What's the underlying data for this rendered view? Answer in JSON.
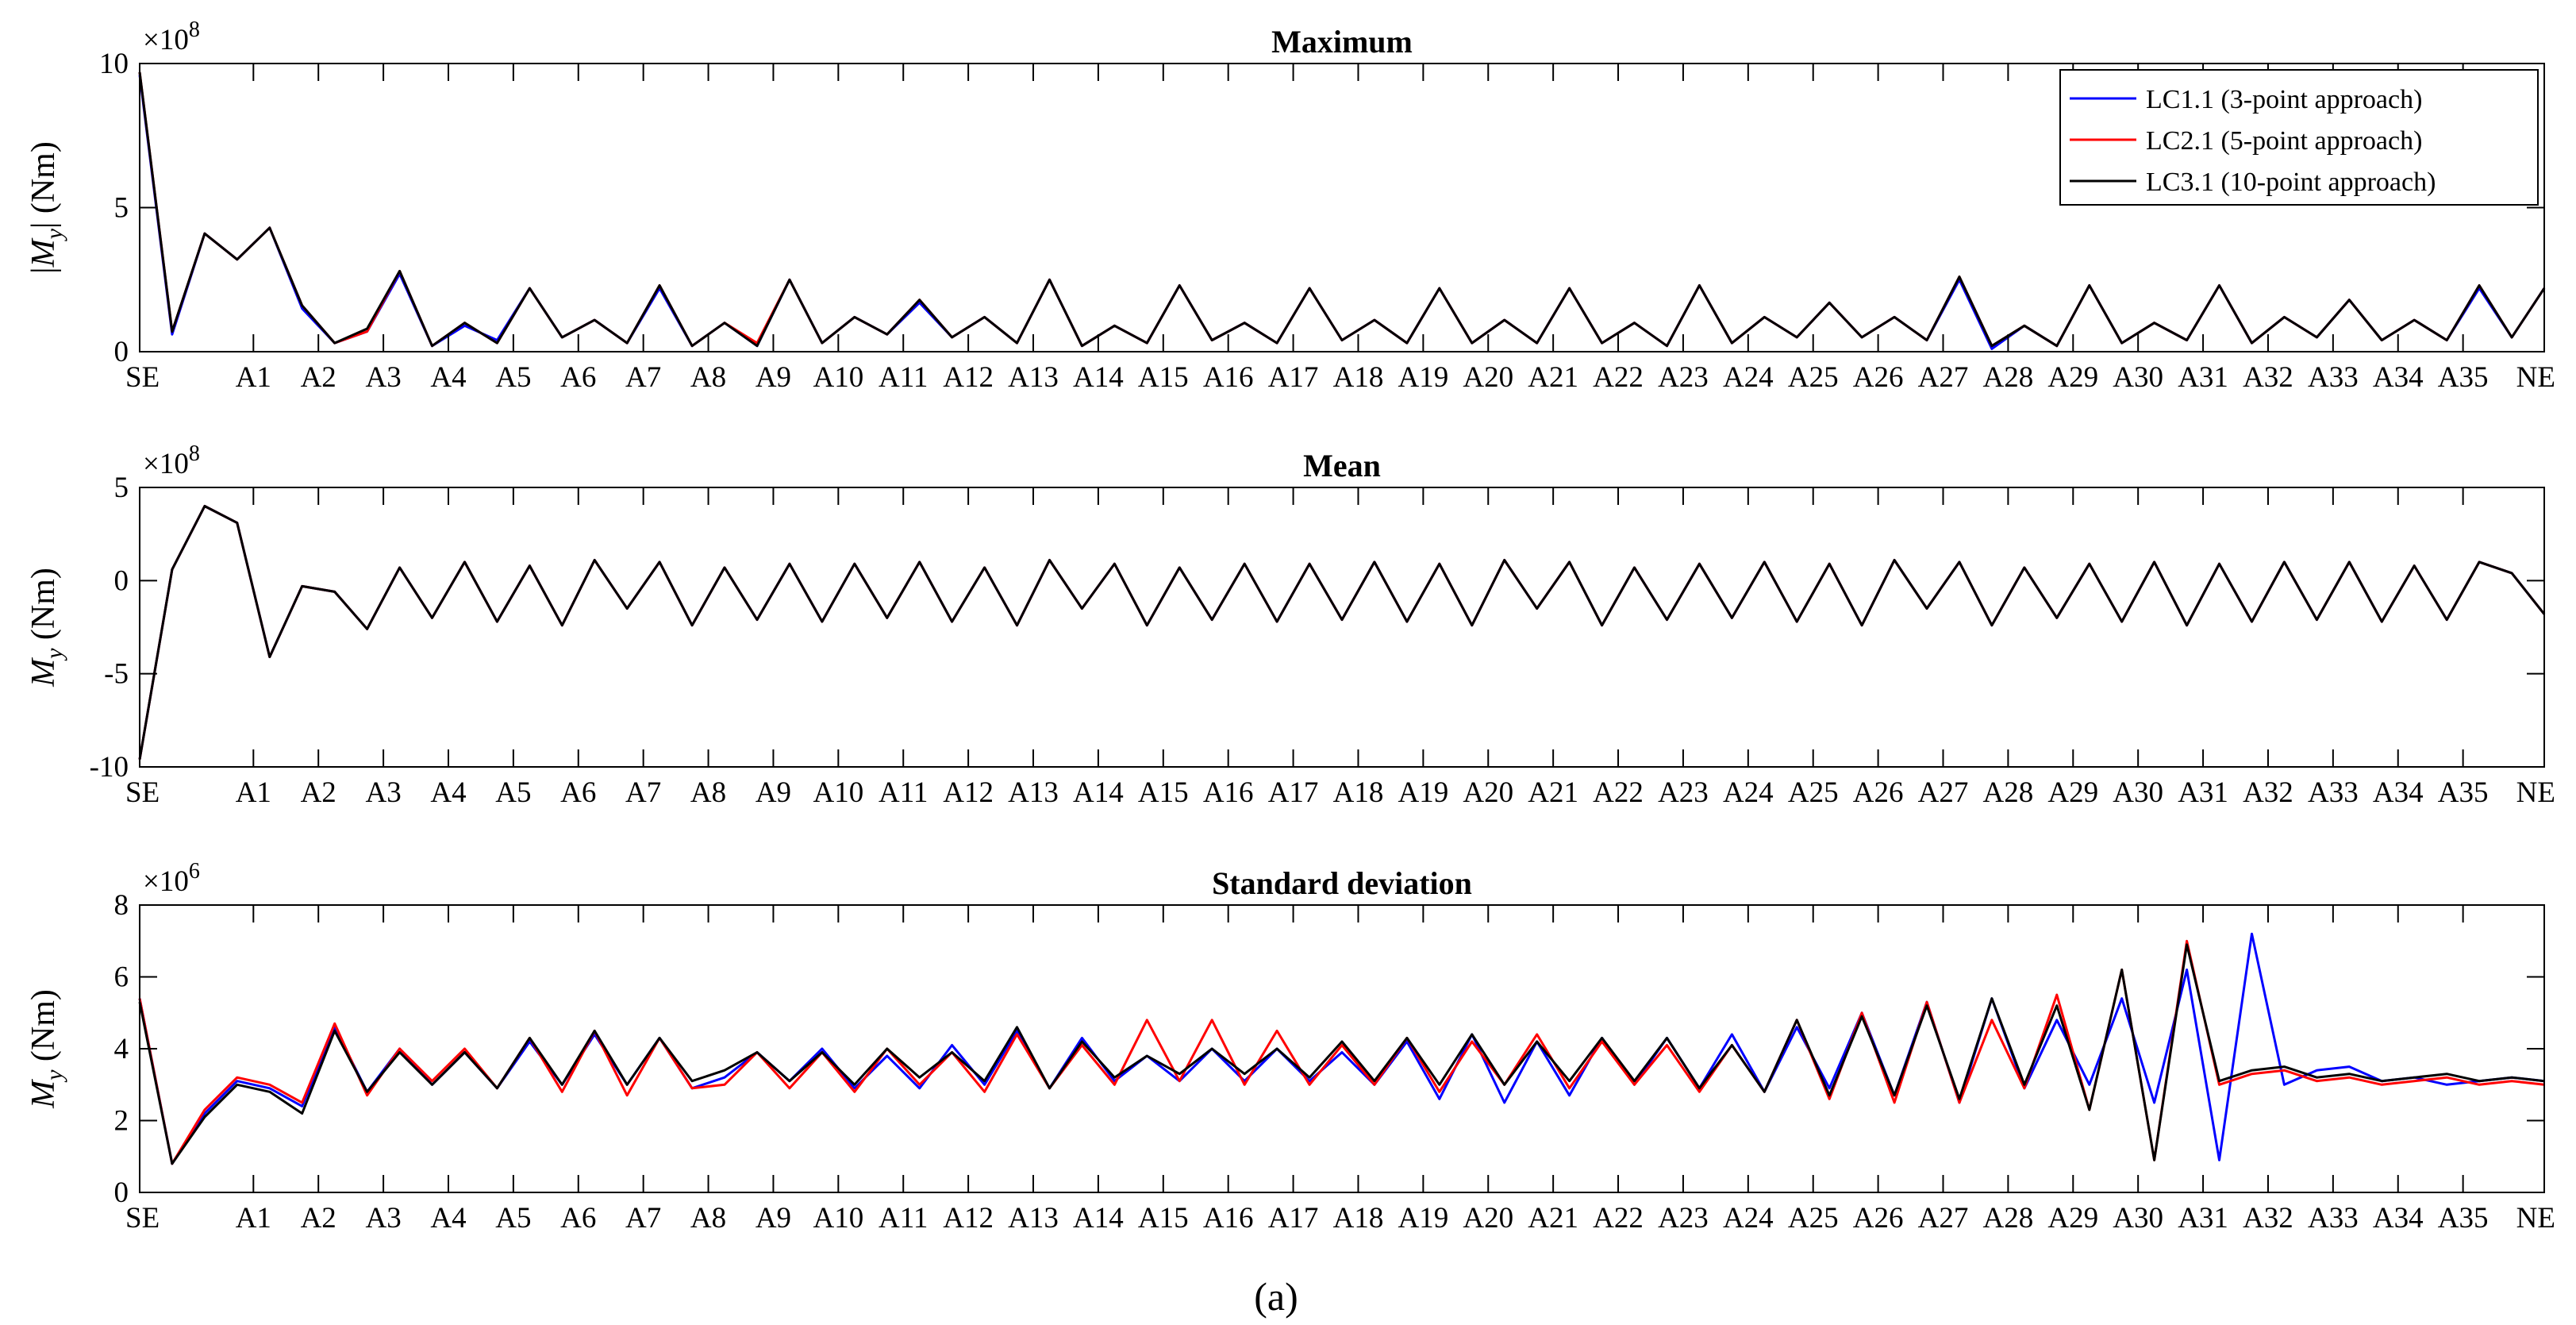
{
  "figure": {
    "caption": "(a)",
    "colors": {
      "LC1.1": "#0000ff",
      "LC2.1": "#ff0000",
      "LC3.1": "#000000"
    }
  },
  "chart_data": [
    {
      "type": "line",
      "title": "Maximum",
      "ylabel": "|M_y| (Nm)",
      "ylabel_parts": {
        "pre": "|",
        "var": "M",
        "sub": "y",
        "post": "| (Nm)"
      },
      "exponent": {
        "base": "×10",
        "power": "8"
      },
      "ylim": [
        0,
        10
      ],
      "yticks": [
        0,
        5,
        10
      ],
      "grid": false,
      "legend": "top-right",
      "x": [
        0,
        1,
        2,
        3,
        4,
        5,
        6,
        7,
        8,
        9,
        10,
        11,
        12,
        13,
        14,
        15,
        16,
        17,
        18,
        19,
        20,
        21,
        22,
        23,
        24,
        25,
        26,
        27,
        28,
        29,
        30,
        31,
        32,
        33,
        34,
        35,
        36,
        37,
        38,
        39,
        40,
        41,
        42,
        43,
        44,
        45,
        46,
        47,
        48,
        49,
        50,
        51,
        52,
        53,
        54,
        55,
        56,
        57,
        58,
        59,
        60,
        61,
        62,
        63,
        64,
        65,
        66,
        67,
        68,
        69,
        70,
        71,
        72,
        73,
        74
      ],
      "series": [
        {
          "name": "LC1.1 (3-point approach)",
          "values": [
            9.6,
            0.6,
            4.1,
            3.2,
            4.3,
            1.5,
            0.3,
            0.7,
            2.7,
            0.2,
            0.9,
            0.4,
            2.2,
            0.5,
            1.1,
            0.3,
            2.2,
            0.2,
            1.0,
            0.2,
            2.5,
            0.3,
            1.2,
            0.6,
            1.7,
            0.5,
            1.2,
            0.3,
            2.5,
            0.2,
            0.9,
            0.3,
            2.3,
            0.4,
            1.0,
            0.3,
            2.2,
            0.4,
            1.1,
            0.3,
            2.2,
            0.3,
            1.1,
            0.3,
            2.2,
            0.3,
            1.0,
            0.2,
            2.3,
            0.3,
            1.2,
            0.5,
            1.7,
            0.5,
            1.2,
            0.4,
            2.5,
            0.1,
            0.9,
            0.2,
            2.3,
            0.3,
            1.0,
            0.4,
            2.3,
            0.3,
            1.2,
            0.5,
            1.8,
            0.4,
            1.1,
            0.4,
            2.2,
            0.5,
            2.2
          ]
        },
        {
          "name": "LC2.1 (5-point approach)",
          "values": [
            9.7,
            0.7,
            4.1,
            3.2,
            4.3,
            1.6,
            0.3,
            0.7,
            2.8,
            0.2,
            1.0,
            0.3,
            2.2,
            0.5,
            1.1,
            0.3,
            2.3,
            0.2,
            1.0,
            0.3,
            2.5,
            0.3,
            1.2,
            0.6,
            1.8,
            0.5,
            1.2,
            0.3,
            2.5,
            0.2,
            0.9,
            0.3,
            2.3,
            0.4,
            1.0,
            0.3,
            2.2,
            0.4,
            1.1,
            0.3,
            2.2,
            0.3,
            1.1,
            0.3,
            2.2,
            0.3,
            1.0,
            0.2,
            2.3,
            0.3,
            1.2,
            0.5,
            1.7,
            0.5,
            1.2,
            0.4,
            2.6,
            0.2,
            0.9,
            0.2,
            2.3,
            0.3,
            1.0,
            0.4,
            2.3,
            0.3,
            1.2,
            0.5,
            1.8,
            0.4,
            1.1,
            0.4,
            2.3,
            0.5,
            2.2
          ]
        },
        {
          "name": "LC3.1 (10-point approach)",
          "values": [
            9.7,
            0.7,
            4.1,
            3.2,
            4.3,
            1.6,
            0.3,
            0.8,
            2.8,
            0.2,
            1.0,
            0.3,
            2.2,
            0.5,
            1.1,
            0.3,
            2.3,
            0.2,
            1.0,
            0.2,
            2.5,
            0.3,
            1.2,
            0.6,
            1.8,
            0.5,
            1.2,
            0.3,
            2.5,
            0.2,
            0.9,
            0.3,
            2.3,
            0.4,
            1.0,
            0.3,
            2.2,
            0.4,
            1.1,
            0.3,
            2.2,
            0.3,
            1.1,
            0.3,
            2.2,
            0.3,
            1.0,
            0.2,
            2.3,
            0.3,
            1.2,
            0.5,
            1.7,
            0.5,
            1.2,
            0.4,
            2.6,
            0.2,
            0.9,
            0.2,
            2.3,
            0.3,
            1.0,
            0.4,
            2.3,
            0.3,
            1.2,
            0.5,
            1.8,
            0.4,
            1.1,
            0.4,
            2.3,
            0.5,
            2.2
          ]
        }
      ]
    },
    {
      "type": "line",
      "title": "Mean",
      "ylabel": "M_y (Nm)",
      "ylabel_parts": {
        "pre": "",
        "var": "M",
        "sub": "y",
        "post": " (Nm)"
      },
      "exponent": {
        "base": "×10",
        "power": "8"
      },
      "ylim": [
        -10,
        5
      ],
      "yticks": [
        -10,
        -5,
        0,
        5
      ],
      "grid": false,
      "x": [
        0,
        1,
        2,
        3,
        4,
        5,
        6,
        7,
        8,
        9,
        10,
        11,
        12,
        13,
        14,
        15,
        16,
        17,
        18,
        19,
        20,
        21,
        22,
        23,
        24,
        25,
        26,
        27,
        28,
        29,
        30,
        31,
        32,
        33,
        34,
        35,
        36,
        37,
        38,
        39,
        40,
        41,
        42,
        43,
        44,
        45,
        46,
        47,
        48,
        49,
        50,
        51,
        52,
        53,
        54,
        55,
        56,
        57,
        58,
        59,
        60,
        61,
        62,
        63,
        64,
        65,
        66,
        67,
        68,
        69,
        70,
        71,
        72,
        73,
        74
      ],
      "series": [
        {
          "name": "LC1.1 (3-point approach)",
          "values": [
            -9.6,
            0.6,
            4.0,
            3.1,
            -4.1,
            -0.3,
            -0.6,
            -2.6,
            0.7,
            -2.0,
            1.0,
            -2.2,
            0.8,
            -2.4,
            1.1,
            -1.5,
            1.0,
            -2.4,
            0.7,
            -2.1,
            0.9,
            -2.2,
            0.9,
            -2.0,
            1.0,
            -2.2,
            0.7,
            -2.4,
            1.1,
            -1.5,
            0.9,
            -2.4,
            0.7,
            -2.1,
            0.9,
            -2.2,
            0.9,
            -2.1,
            1.0,
            -2.2,
            0.9,
            -2.4,
            1.1,
            -1.5,
            1.0,
            -2.4,
            0.7,
            -2.1,
            0.9,
            -2.0,
            1.0,
            -2.2,
            0.9,
            -2.4,
            1.1,
            -1.5,
            1.0,
            -2.4,
            0.7,
            -2.0,
            0.9,
            -2.2,
            1.0,
            -2.4,
            0.9,
            -2.2,
            1.0,
            -2.1,
            1.0,
            -2.2,
            0.8,
            -2.1,
            1.0,
            0.4,
            -1.8
          ]
        },
        {
          "name": "LC2.1 (5-point approach)",
          "values": [
            -9.6,
            0.6,
            4.0,
            3.1,
            -4.1,
            -0.3,
            -0.6,
            -2.6,
            0.7,
            -2.0,
            1.0,
            -2.2,
            0.8,
            -2.4,
            1.1,
            -1.5,
            1.0,
            -2.4,
            0.7,
            -2.1,
            0.9,
            -2.2,
            0.9,
            -2.0,
            1.0,
            -2.2,
            0.7,
            -2.4,
            1.1,
            -1.5,
            0.9,
            -2.4,
            0.7,
            -2.1,
            0.9,
            -2.2,
            0.9,
            -2.1,
            1.0,
            -2.2,
            0.9,
            -2.4,
            1.1,
            -1.5,
            1.0,
            -2.4,
            0.7,
            -2.1,
            0.9,
            -2.0,
            1.0,
            -2.2,
            0.9,
            -2.4,
            1.1,
            -1.5,
            1.0,
            -2.4,
            0.7,
            -2.0,
            0.9,
            -2.2,
            1.0,
            -2.4,
            0.9,
            -2.2,
            1.0,
            -2.1,
            1.0,
            -2.2,
            0.8,
            -2.1,
            1.0,
            0.4,
            -1.8
          ]
        },
        {
          "name": "LC3.1 (10-point approach)",
          "values": [
            -9.6,
            0.6,
            4.0,
            3.1,
            -4.1,
            -0.3,
            -0.6,
            -2.6,
            0.7,
            -2.0,
            1.0,
            -2.2,
            0.8,
            -2.4,
            1.1,
            -1.5,
            1.0,
            -2.4,
            0.7,
            -2.1,
            0.9,
            -2.2,
            0.9,
            -2.0,
            1.0,
            -2.2,
            0.7,
            -2.4,
            1.1,
            -1.5,
            0.9,
            -2.4,
            0.7,
            -2.1,
            0.9,
            -2.2,
            0.9,
            -2.1,
            1.0,
            -2.2,
            0.9,
            -2.4,
            1.1,
            -1.5,
            1.0,
            -2.4,
            0.7,
            -2.1,
            0.9,
            -2.0,
            1.0,
            -2.2,
            0.9,
            -2.4,
            1.1,
            -1.5,
            1.0,
            -2.4,
            0.7,
            -2.0,
            0.9,
            -2.2,
            1.0,
            -2.4,
            0.9,
            -2.2,
            1.0,
            -2.1,
            1.0,
            -2.2,
            0.8,
            -2.1,
            1.0,
            0.4,
            -1.8
          ]
        }
      ]
    },
    {
      "type": "line",
      "title": "Standard deviation",
      "ylabel": "M_y (Nm)",
      "ylabel_parts": {
        "pre": "",
        "var": "M",
        "sub": "y",
        "post": " (Nm)"
      },
      "exponent": {
        "base": "×10",
        "power": "6"
      },
      "ylim": [
        0,
        8
      ],
      "yticks": [
        0,
        2,
        4,
        6,
        8
      ],
      "grid": false,
      "x": [
        0,
        1,
        2,
        3,
        4,
        5,
        6,
        7,
        8,
        9,
        10,
        11,
        12,
        13,
        14,
        15,
        16,
        17,
        18,
        19,
        20,
        21,
        22,
        23,
        24,
        25,
        26,
        27,
        28,
        29,
        30,
        31,
        32,
        33,
        34,
        35,
        36,
        37,
        38,
        39,
        40,
        41,
        42,
        43,
        44,
        45,
        46,
        47,
        48,
        49,
        50,
        51,
        52,
        53,
        54,
        55,
        56,
        57,
        58,
        59,
        60,
        61,
        62,
        63,
        64,
        65,
        66,
        67,
        68,
        69,
        70,
        71,
        72,
        73,
        74
      ],
      "series": [
        {
          "name": "LC1.1 (3-point approach)",
          "values": [
            5.4,
            0.8,
            2.2,
            3.1,
            2.9,
            2.4,
            4.6,
            2.8,
            4.0,
            3.0,
            3.9,
            2.9,
            4.2,
            3.0,
            4.4,
            3.0,
            4.3,
            2.9,
            3.2,
            3.9,
            3.1,
            4.0,
            2.9,
            3.8,
            2.9,
            4.1,
            3.0,
            4.5,
            2.9,
            4.3,
            3.1,
            3.8,
            3.1,
            4.0,
            3.1,
            4.0,
            3.1,
            3.9,
            3.0,
            4.2,
            2.6,
            4.4,
            2.5,
            4.2,
            2.7,
            4.3,
            3.0,
            4.3,
            2.9,
            4.4,
            2.8,
            4.6,
            2.9,
            5.0,
            2.7,
            5.3,
            2.5,
            5.4,
            2.9,
            4.8,
            3.0,
            5.4,
            2.5,
            6.2,
            0.9,
            7.2,
            3.0,
            3.4,
            3.5,
            3.1,
            3.2,
            3.0,
            3.1,
            3.2,
            3.1
          ]
        },
        {
          "name": "LC2.1 (5-point approach)",
          "values": [
            5.4,
            0.8,
            2.3,
            3.2,
            3.0,
            2.5,
            4.7,
            2.7,
            4.0,
            3.1,
            4.0,
            2.9,
            4.3,
            2.8,
            4.5,
            2.7,
            4.3,
            2.9,
            3.0,
            3.9,
            2.9,
            3.9,
            2.8,
            4.0,
            3.0,
            3.9,
            2.8,
            4.4,
            2.9,
            4.1,
            3.0,
            4.8,
            3.1,
            4.8,
            3.0,
            4.5,
            3.0,
            4.1,
            3.0,
            4.3,
            2.8,
            4.2,
            3.0,
            4.4,
            2.9,
            4.2,
            3.0,
            4.1,
            2.8,
            4.1,
            2.8,
            4.8,
            2.6,
            5.0,
            2.5,
            5.3,
            2.5,
            4.8,
            2.9,
            5.5,
            2.3,
            6.2,
            0.9,
            7.0,
            3.0,
            3.3,
            3.4,
            3.1,
            3.2,
            3.0,
            3.1,
            3.2,
            3.0,
            3.1,
            3.0
          ]
        },
        {
          "name": "LC3.1 (10-point approach)",
          "values": [
            5.3,
            0.8,
            2.1,
            3.0,
            2.8,
            2.2,
            4.5,
            2.8,
            3.9,
            3.0,
            3.9,
            2.9,
            4.3,
            3.0,
            4.5,
            3.0,
            4.3,
            3.1,
            3.4,
            3.9,
            3.1,
            3.9,
            3.0,
            4.0,
            3.2,
            3.9,
            3.1,
            4.6,
            2.9,
            4.2,
            3.2,
            3.8,
            3.3,
            4.0,
            3.3,
            4.0,
            3.2,
            4.2,
            3.1,
            4.3,
            3.0,
            4.4,
            3.0,
            4.2,
            3.1,
            4.3,
            3.1,
            4.3,
            2.9,
            4.1,
            2.8,
            4.8,
            2.7,
            4.9,
            2.7,
            5.2,
            2.6,
            5.4,
            3.0,
            5.2,
            2.3,
            6.2,
            0.9,
            6.9,
            3.1,
            3.4,
            3.5,
            3.2,
            3.3,
            3.1,
            3.2,
            3.3,
            3.1,
            3.2,
            3.1
          ]
        }
      ]
    }
  ],
  "xaxis": {
    "tick_labels": [
      "SE",
      "A1",
      "A2",
      "A3",
      "A4",
      "A5",
      "A6",
      "A7",
      "A8",
      "A9",
      "A10",
      "A11",
      "A12",
      "A13",
      "A14",
      "A15",
      "A16",
      "A17",
      "A18",
      "A19",
      "A20",
      "A21",
      "A22",
      "A23",
      "A24",
      "A25",
      "A26",
      "A27",
      "A28",
      "A29",
      "A30",
      "A31",
      "A32",
      "A33",
      "A34",
      "A35",
      "NE"
    ],
    "tick_positions": [
      0,
      3.5,
      5.5,
      7.5,
      9.5,
      11.5,
      13.5,
      15.5,
      17.5,
      19.5,
      21.5,
      23.5,
      25.5,
      27.5,
      29.5,
      31.5,
      33.5,
      35.5,
      37.5,
      39.5,
      41.5,
      43.5,
      45.5,
      47.5,
      49.5,
      51.5,
      53.5,
      55.5,
      57.5,
      59.5,
      61.5,
      63.5,
      65.5,
      67.5,
      69.5,
      71.5,
      74
    ],
    "xlim": [
      0,
      74
    ]
  }
}
